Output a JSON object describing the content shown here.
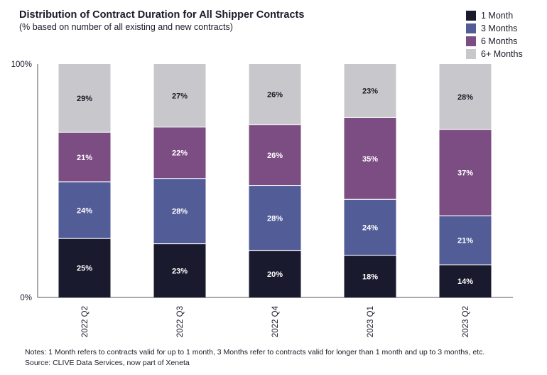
{
  "chart_data": {
    "type": "bar",
    "stacked": true,
    "title": "Distribution of Contract Duration for All Shipper Contracts",
    "subtitle": "(% based on number of all existing and new contracts)",
    "categories": [
      "2022 Q2",
      "2022 Q3",
      "2022 Q4",
      "2023 Q1",
      "2023 Q2"
    ],
    "series": [
      {
        "name": "1 Month",
        "color": "#1a1a2e",
        "text_color": "#ffffff",
        "values": [
          25,
          23,
          20,
          18,
          14
        ]
      },
      {
        "name": "3 Months",
        "color": "#525c97",
        "text_color": "#ffffff",
        "values": [
          24,
          28,
          28,
          24,
          21
        ]
      },
      {
        "name": "6 Months",
        "color": "#7b4d82",
        "text_color": "#ffffff",
        "values": [
          21,
          22,
          26,
          35,
          37
        ]
      },
      {
        "name": "6+ Months",
        "color": "#c8c8cc",
        "text_color": "#1b1b2a",
        "values": [
          29,
          27,
          26,
          23,
          28
        ]
      }
    ],
    "data_labels": [
      [
        "25%",
        "23%",
        "20%",
        "18%",
        "14%"
      ],
      [
        "24%",
        "28%",
        "28%",
        "24%",
        "21%"
      ],
      [
        "21%",
        "22%",
        "26%",
        "35%",
        "37%"
      ],
      [
        "29%",
        "27%",
        "26%",
        "23%",
        "28%"
      ]
    ],
    "y_ticks": [
      "0%",
      "100%"
    ],
    "ylim": [
      0,
      100
    ],
    "legend_position": "top-right",
    "grid": false
  },
  "notes": {
    "line1": "Notes: 1 Month refers to contracts valid for up to 1 month, 3 Months refer to contracts valid for longer than 1 month and up to 3 months, etc.",
    "line2": "Source: CLIVE Data Services, now part of Xeneta"
  }
}
